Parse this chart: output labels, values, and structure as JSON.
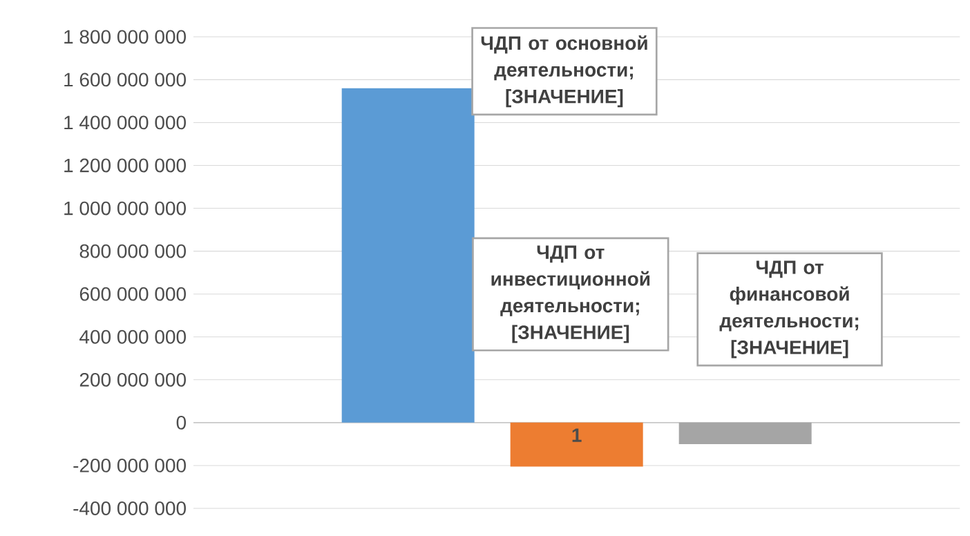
{
  "chart_data": {
    "type": "bar",
    "categories": [
      "1"
    ],
    "series": [
      {
        "color": "#5b9bd5",
        "values": [
          1560000000
        ]
      },
      {
        "color": "#ed7d31",
        "values": [
          -205000000
        ]
      },
      {
        "color": "#a5a5a5",
        "values": [
          -100000000
        ]
      }
    ],
    "ylim": [
      -400000000,
      1800000000
    ],
    "yticks": [
      {
        "value": -400000000,
        "label": "-400 000 000"
      },
      {
        "value": -200000000,
        "label": "-200 000 000"
      },
      {
        "value": 0,
        "label": "0"
      },
      {
        "value": 200000000,
        "label": "200 000 000"
      },
      {
        "value": 400000000,
        "label": "400 000 000"
      },
      {
        "value": 600000000,
        "label": "600 000 000"
      },
      {
        "value": 800000000,
        "label": "800 000 000"
      },
      {
        "value": 1000000000,
        "label": "1 000 000 000"
      },
      {
        "value": 1200000000,
        "label": "1 200 000 000"
      },
      {
        "value": 1400000000,
        "label": "1 400 000 000"
      },
      {
        "value": 1600000000,
        "label": "1 600 000 000"
      },
      {
        "value": 1800000000,
        "label": "1 800 000 000"
      }
    ],
    "grid": "y",
    "annotations": [
      "ЧДП от основной деятельности; [ЗНАЧЕНИЕ]",
      "ЧДП от инвестиционной деятельности; [ЗНАЧЕНИЕ]",
      "ЧДП от финансовой деятельности; [ЗНАЧЕНИЕ]"
    ]
  }
}
